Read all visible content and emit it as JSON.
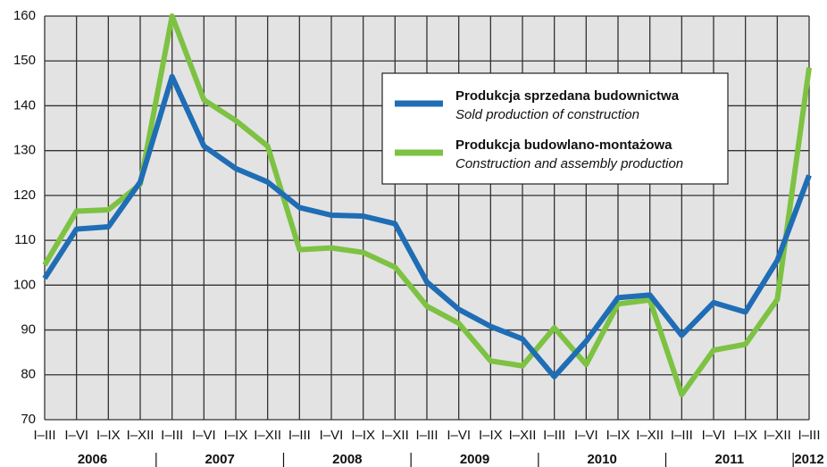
{
  "chart_data": {
    "type": "line",
    "categories": [
      "I–III",
      "I–VI",
      "I–IX",
      "I–XII",
      "I–III",
      "I–VI",
      "I–IX",
      "I–XII",
      "I–III",
      "I–VI",
      "I–IX",
      "I–XII",
      "I–III",
      "I–VI",
      "I–IX",
      "I–XII",
      "I–III",
      "I–VI",
      "I–IX",
      "I–XII",
      "I–III",
      "I–VI",
      "I–IX",
      "I–XII",
      "I–III"
    ],
    "years": [
      "2006",
      "2007",
      "2008",
      "2009",
      "2010",
      "2011",
      "2012"
    ],
    "series": [
      {
        "name": "Produkcja sprzedana budownictwa",
        "name_en": "Sold production of construction",
        "color": "#1f6db5",
        "values": [
          101.5,
          112.5,
          113,
          123,
          146.5,
          131,
          126,
          123,
          117.3,
          115.6,
          115.4,
          113.7,
          100.7,
          94.6,
          90.8,
          88,
          79.6,
          87.5,
          97.2,
          97.8,
          88.8,
          96.1,
          94,
          105.5,
          124.5
        ]
      },
      {
        "name": "Produkcja budowlano-montażowa",
        "name_en": "Construction and assembly production",
        "color": "#7dc242",
        "values": [
          104.5,
          116.5,
          116.8,
          122.5,
          160,
          141.3,
          136.7,
          131,
          107.9,
          108.3,
          107.3,
          104,
          95.3,
          91.5,
          83.1,
          82,
          90.5,
          82.3,
          95.8,
          96.7,
          75.6,
          85.5,
          86.8,
          96.8,
          148.5
        ]
      }
    ],
    "ylim": [
      70,
      160
    ],
    "yticks": [
      70,
      80,
      90,
      100,
      110,
      120,
      130,
      140,
      150,
      160
    ],
    "grid": true
  }
}
